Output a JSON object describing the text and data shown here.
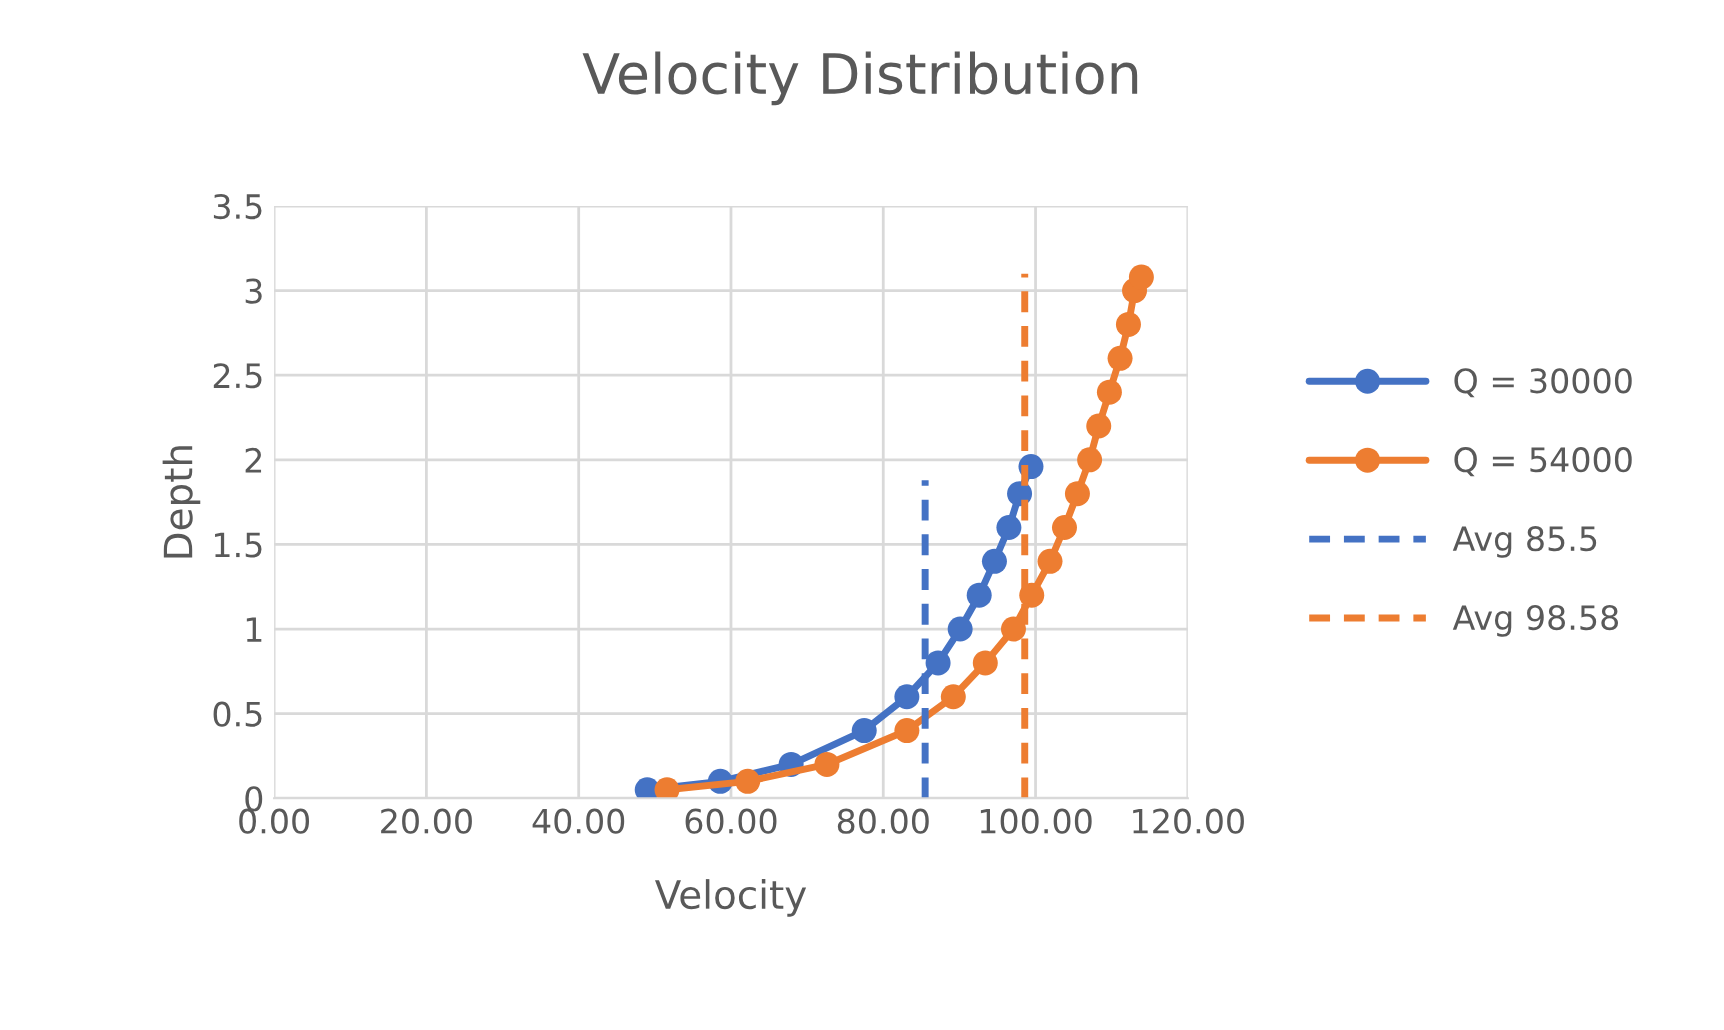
{
  "chart_data": {
    "type": "line",
    "title": "Velocity Distribution",
    "xlabel": "Velocity",
    "ylabel": "Depth",
    "xlim": [
      0,
      120
    ],
    "xticks": [
      {
        "value": 0,
        "label": "0.00"
      },
      {
        "value": 20,
        "label": "20.00"
      },
      {
        "value": 40,
        "label": "40.00"
      },
      {
        "value": 60,
        "label": "60.00"
      },
      {
        "value": 80,
        "label": "80.00"
      },
      {
        "value": 100,
        "label": "100.00"
      },
      {
        "value": 120,
        "label": "120.00"
      }
    ],
    "ylim": [
      0,
      3.5
    ],
    "yticks": [
      0,
      0.5,
      1,
      1.5,
      2,
      2.5,
      3,
      3.5
    ],
    "grid": true,
    "legend": "right",
    "series": [
      {
        "name": "Q = 30000",
        "color": "#4472c4",
        "marker": "circle",
        "line_style": "solid",
        "x": [
          49.0,
          58.6,
          67.9,
          77.5,
          83.1,
          87.2,
          90.1,
          92.6,
          94.6,
          96.5,
          97.9,
          99.4
        ],
        "values": [
          0.05,
          0.1,
          0.2,
          0.4,
          0.6,
          0.8,
          1.0,
          1.2,
          1.4,
          1.6,
          1.8,
          1.96
        ]
      },
      {
        "name": "Q = 54000",
        "color": "#ed7d31",
        "marker": "circle",
        "line_style": "solid",
        "x": [
          51.6,
          62.2,
          72.6,
          83.1,
          89.2,
          93.4,
          97.1,
          99.5,
          101.9,
          103.8,
          105.5,
          107.1,
          108.3,
          109.7,
          111.1,
          112.2,
          113.0,
          113.9
        ],
        "values": [
          0.05,
          0.1,
          0.2,
          0.4,
          0.6,
          0.8,
          1.0,
          1.2,
          1.4,
          1.6,
          1.8,
          2.0,
          2.2,
          2.4,
          2.6,
          2.8,
          3.0,
          3.08
        ]
      },
      {
        "name": "Avg 85.5",
        "color": "#4472c4",
        "marker": "none",
        "line_style": "dashed",
        "x": [
          85.5,
          85.5
        ],
        "values": [
          0,
          1.88
        ]
      },
      {
        "name": "Avg 98.58",
        "color": "#ed7d31",
        "marker": "none",
        "line_style": "dashed",
        "x": [
          98.58,
          98.58
        ],
        "values": [
          0,
          3.1
        ]
      }
    ]
  }
}
